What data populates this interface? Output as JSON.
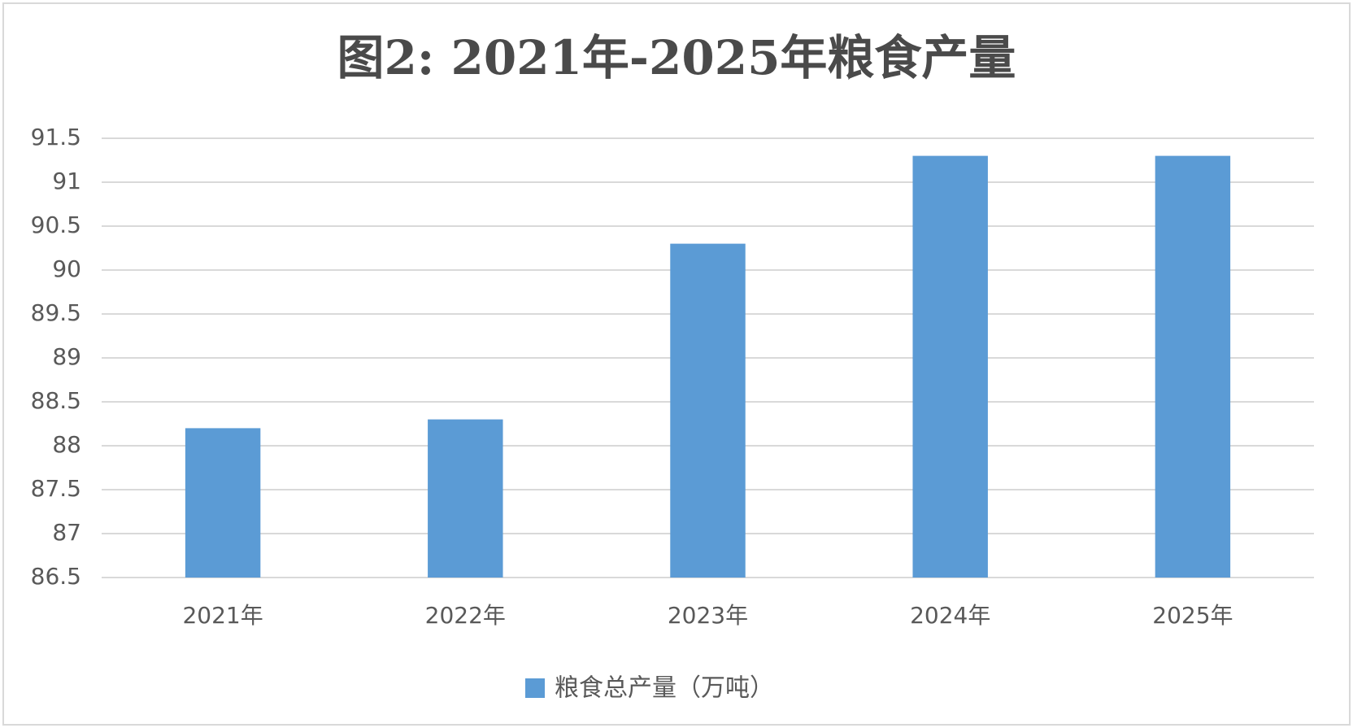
{
  "chart_data": {
    "type": "bar",
    "title": "图2: 2021年-2025年粮食产量",
    "categories": [
      "2021年",
      "2022年",
      "2023年",
      "2024年",
      "2025年"
    ],
    "series": [
      {
        "name": "粮食总产量（万吨）",
        "color": "#5b9bd5",
        "values": [
          88.2,
          88.3,
          90.3,
          91.3,
          91.3
        ]
      }
    ],
    "ylim": [
      86.5,
      91.5
    ],
    "yticks": [
      86.5,
      87,
      87.5,
      88,
      88.5,
      89,
      89.5,
      90,
      90.5,
      91,
      91.5
    ],
    "grid": true,
    "legend": "bottom"
  }
}
